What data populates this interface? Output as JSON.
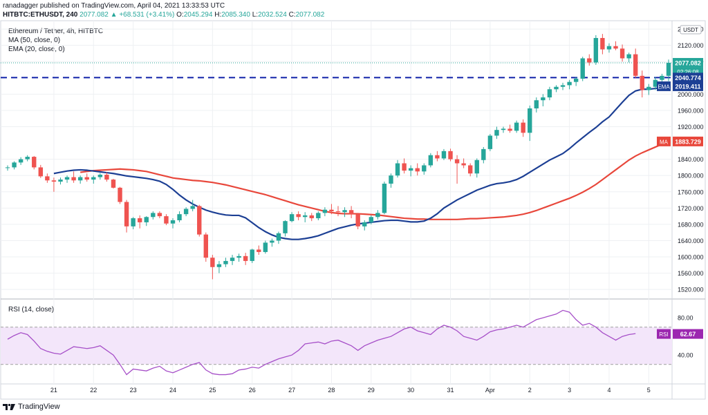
{
  "header": {
    "line1": "ranadagger published on TradingView.com, April 04, 2021 13:33:53 UTC",
    "symbol": "HITBTC:ETHUSDT, 240",
    "last": "2077.082",
    "change": "▲ +68.531 (+3.41%)",
    "o_label": "O:",
    "o_val": "2045.294",
    "h_label": "H:",
    "h_val": "2085.340",
    "l_label": "L:",
    "l_val": "2032.524",
    "c_label": "C:",
    "c_val": "2077.082"
  },
  "legend": {
    "title": "Ethereum / Tether, 4h, HITBTC",
    "ma": "MA (50, close, 0)",
    "ema": "EMA (20, close, 0)",
    "rsi": "RSI (14, close)"
  },
  "currency_label": "USDT",
  "price_tags": {
    "last": "2077.082",
    "countdown": "02:26:08",
    "support": "2040.774",
    "ema_label": "EMA",
    "ema": "2019.411",
    "ma_label": "MA",
    "ma": "1883.729",
    "rsi_label": "RSI",
    "rsi": "62.67"
  },
  "footer": {
    "brand": "TradingView"
  },
  "colors": {
    "up": "#26a69a",
    "down": "#ef5350",
    "ma": "#e8473b",
    "ema": "#1c3f94",
    "support": "#0d1fa8",
    "rsi_line": "#a64fc8",
    "rsi_band": "#f3e6fa",
    "grid": "#eef0f3",
    "axis_text": "#131722",
    "tag_dark": "#1c3f94",
    "tag_red": "#e8473b",
    "tag_gray": "#787b86",
    "tag_rsi": "#9c27b0"
  },
  "chart_data": {
    "type": "candlestick",
    "title": "Ethereum / Tether, 4h, HITBTC",
    "xlabel": "",
    "ylabel": "",
    "price_ticks": [
      2160,
      2120,
      2080,
      2000,
      1960,
      1920,
      1840,
      1800,
      1760,
      1720,
      1680,
      1640,
      1600,
      1560,
      1520
    ],
    "price_ylim": [
      1505,
      2172
    ],
    "x_ticks": [
      {
        "label": "21",
        "i": 7
      },
      {
        "label": "22",
        "i": 13
      },
      {
        "label": "23",
        "i": 19
      },
      {
        "label": "24",
        "i": 25
      },
      {
        "label": "25",
        "i": 31
      },
      {
        "label": "26",
        "i": 37
      },
      {
        "label": "27",
        "i": 43
      },
      {
        "label": "28",
        "i": 49
      },
      {
        "label": "29",
        "i": 55
      },
      {
        "label": "30",
        "i": 61
      },
      {
        "label": "31",
        "i": 67
      },
      {
        "label": "Apr",
        "i": 73
      },
      {
        "label": "2",
        "i": 79
      },
      {
        "label": "3",
        "i": 85
      },
      {
        "label": "4",
        "i": 91
      },
      {
        "label": "5",
        "i": 97
      }
    ],
    "support_level": 2040.774,
    "candles": [
      [
        1820,
        1825,
        1812,
        1820
      ],
      [
        1820,
        1835,
        1815,
        1832
      ],
      [
        1832,
        1845,
        1826,
        1840
      ],
      [
        1840,
        1850,
        1835,
        1846
      ],
      [
        1846,
        1848,
        1815,
        1820
      ],
      [
        1820,
        1826,
        1794,
        1798
      ],
      [
        1798,
        1805,
        1782,
        1788
      ],
      [
        1788,
        1795,
        1760,
        1785
      ],
      [
        1785,
        1795,
        1778,
        1790
      ],
      [
        1790,
        1800,
        1782,
        1796
      ],
      [
        1796,
        1810,
        1782,
        1788
      ],
      [
        1788,
        1800,
        1780,
        1796
      ],
      [
        1796,
        1805,
        1785,
        1790
      ],
      [
        1790,
        1800,
        1780,
        1796
      ],
      [
        1796,
        1806,
        1790,
        1802
      ],
      [
        1802,
        1808,
        1785,
        1790
      ],
      [
        1790,
        1792,
        1768,
        1770
      ],
      [
        1770,
        1772,
        1730,
        1735
      ],
      [
        1735,
        1740,
        1660,
        1675
      ],
      [
        1675,
        1698,
        1668,
        1695
      ],
      [
        1695,
        1702,
        1670,
        1685
      ],
      [
        1685,
        1700,
        1676,
        1698
      ],
      [
        1698,
        1712,
        1692,
        1708
      ],
      [
        1708,
        1712,
        1695,
        1700
      ],
      [
        1700,
        1705,
        1678,
        1682
      ],
      [
        1682,
        1695,
        1670,
        1690
      ],
      [
        1690,
        1712,
        1685,
        1705
      ],
      [
        1705,
        1722,
        1700,
        1718
      ],
      [
        1718,
        1740,
        1712,
        1725
      ],
      [
        1725,
        1728,
        1650,
        1655
      ],
      [
        1655,
        1660,
        1588,
        1598
      ],
      [
        1598,
        1605,
        1545,
        1575
      ],
      [
        1575,
        1590,
        1560,
        1582
      ],
      [
        1582,
        1598,
        1575,
        1590
      ],
      [
        1590,
        1605,
        1580,
        1598
      ],
      [
        1598,
        1608,
        1588,
        1602
      ],
      [
        1602,
        1610,
        1580,
        1590
      ],
      [
        1590,
        1620,
        1585,
        1618
      ],
      [
        1618,
        1628,
        1605,
        1612
      ],
      [
        1612,
        1640,
        1608,
        1635
      ],
      [
        1635,
        1645,
        1625,
        1640
      ],
      [
        1640,
        1662,
        1632,
        1658
      ],
      [
        1658,
        1690,
        1650,
        1688
      ],
      [
        1688,
        1710,
        1685,
        1705
      ],
      [
        1705,
        1712,
        1690,
        1698
      ],
      [
        1698,
        1710,
        1685,
        1702
      ],
      [
        1702,
        1708,
        1688,
        1695
      ],
      [
        1695,
        1712,
        1690,
        1708
      ],
      [
        1708,
        1722,
        1700,
        1716
      ],
      [
        1716,
        1730,
        1705,
        1712
      ],
      [
        1712,
        1725,
        1700,
        1710
      ],
      [
        1710,
        1722,
        1698,
        1715
      ],
      [
        1715,
        1725,
        1695,
        1705
      ],
      [
        1705,
        1708,
        1668,
        1675
      ],
      [
        1675,
        1690,
        1665,
        1685
      ],
      [
        1685,
        1702,
        1680,
        1698
      ],
      [
        1698,
        1715,
        1692,
        1708
      ],
      [
        1708,
        1785,
        1705,
        1780
      ],
      [
        1780,
        1805,
        1770,
        1800
      ],
      [
        1800,
        1838,
        1795,
        1830
      ],
      [
        1830,
        1842,
        1805,
        1812
      ],
      [
        1812,
        1825,
        1798,
        1818
      ],
      [
        1818,
        1830,
        1800,
        1810
      ],
      [
        1810,
        1830,
        1802,
        1825
      ],
      [
        1825,
        1855,
        1820,
        1850
      ],
      [
        1850,
        1860,
        1835,
        1842
      ],
      [
        1842,
        1865,
        1838,
        1860
      ],
      [
        1860,
        1866,
        1835,
        1840
      ],
      [
        1840,
        1850,
        1780,
        1830
      ],
      [
        1830,
        1842,
        1818,
        1825
      ],
      [
        1825,
        1830,
        1798,
        1805
      ],
      [
        1805,
        1842,
        1795,
        1838
      ],
      [
        1838,
        1870,
        1830,
        1865
      ],
      [
        1865,
        1902,
        1860,
        1898
      ],
      [
        1898,
        1920,
        1890,
        1912
      ],
      [
        1912,
        1920,
        1905,
        1915
      ],
      [
        1915,
        1925,
        1905,
        1910
      ],
      [
        1910,
        1935,
        1905,
        1930
      ],
      [
        1930,
        1938,
        1895,
        1905
      ],
      [
        1905,
        1972,
        1885,
        1965
      ],
      [
        1965,
        1992,
        1955,
        1985
      ],
      [
        1985,
        2000,
        1970,
        1992
      ],
      [
        1992,
        2018,
        1985,
        2012
      ],
      [
        2012,
        2022,
        2005,
        2018
      ],
      [
        2018,
        2028,
        2010,
        2022
      ],
      [
        2022,
        2035,
        2012,
        2030
      ],
      [
        2030,
        2042,
        2020,
        2038
      ],
      [
        2038,
        2092,
        2032,
        2088
      ],
      [
        2088,
        2098,
        2070,
        2078
      ],
      [
        2078,
        2145,
        2072,
        2138
      ],
      [
        2138,
        2148,
        2098,
        2110
      ],
      [
        2110,
        2125,
        2102,
        2118
      ],
      [
        2118,
        2130,
        2108,
        2112
      ],
      [
        2112,
        2122,
        2080,
        2088
      ],
      [
        2088,
        2102,
        2078,
        2098
      ],
      [
        2098,
        2112,
        2040,
        2045
      ],
      [
        2045,
        2058,
        1992,
        2010
      ],
      [
        2010,
        2025,
        1998,
        2018
      ],
      [
        2018,
        2042,
        2010,
        2035
      ],
      [
        2035,
        2050,
        2030,
        2045
      ],
      [
        2045,
        2085,
        2032,
        2077
      ]
    ],
    "ma50": [
      1808,
      1810,
      1812,
      1813,
      1814,
      1815,
      1816,
      1815,
      1814,
      1812,
      1810,
      1806,
      1802,
      1798,
      1794,
      1792,
      1790,
      1788,
      1787,
      1785,
      1783,
      1780,
      1777,
      1773,
      1769,
      1765,
      1761,
      1757,
      1753,
      1748,
      1743,
      1738,
      1733,
      1728,
      1724,
      1720,
      1716,
      1712,
      1709,
      1707,
      1706,
      1706,
      1706,
      1705,
      1704,
      1703,
      1701,
      1699,
      1697,
      1695,
      1694,
      1693,
      1693,
      1692,
      1692,
      1692,
      1692,
      1692,
      1693,
      1694,
      1694,
      1695,
      1696,
      1697,
      1698,
      1700,
      1702,
      1705,
      1709,
      1714,
      1720,
      1726,
      1732,
      1738,
      1744,
      1751,
      1759,
      1768,
      1778,
      1790,
      1802,
      1814,
      1826,
      1838,
      1848,
      1856,
      1863,
      1870,
      1877,
      1883
    ],
    "ema20": [
      1805,
      1808,
      1811,
      1813,
      1814,
      1813,
      1811,
      1809,
      1807,
      1805,
      1802,
      1799,
      1797,
      1795,
      1793,
      1790,
      1786,
      1778,
      1766,
      1752,
      1740,
      1730,
      1722,
      1715,
      1710,
      1706,
      1703,
      1702,
      1702,
      1696,
      1684,
      1672,
      1662,
      1654,
      1648,
      1645,
      1643,
      1643,
      1645,
      1648,
      1652,
      1658,
      1664,
      1670,
      1674,
      1678,
      1681,
      1683,
      1685,
      1687,
      1689,
      1690,
      1690,
      1688,
      1686,
      1686,
      1688,
      1695,
      1706,
      1720,
      1730,
      1740,
      1748,
      1756,
      1764,
      1770,
      1776,
      1780,
      1782,
      1785,
      1790,
      1798,
      1808,
      1818,
      1828,
      1838,
      1846,
      1854,
      1866,
      1880,
      1893,
      1906,
      1918,
      1932,
      1944,
      1962,
      1980,
      1997,
      2008,
      2012,
      2012,
      2014,
      2016,
      2019
    ],
    "rsi_ticks": [
      80,
      40
    ],
    "rsi_ylim": [
      12,
      92
    ],
    "rsi_band": [
      30,
      70
    ],
    "rsi": [
      57,
      61,
      64,
      62,
      55,
      47,
      44,
      42,
      41,
      45,
      49,
      48,
      47,
      48,
      50,
      45,
      40,
      30,
      19,
      25,
      24,
      23,
      26,
      28,
      23,
      21,
      24,
      27,
      30,
      32,
      24,
      20,
      19,
      19,
      20,
      24,
      25,
      27,
      26,
      30,
      33,
      36,
      38,
      40,
      45,
      52,
      53,
      54,
      52,
      55,
      56,
      53,
      50,
      45,
      50,
      53,
      56,
      58,
      60,
      64,
      68,
      70,
      66,
      64,
      62,
      68,
      72,
      70,
      66,
      60,
      58,
      56,
      60,
      65,
      67,
      68,
      70,
      72,
      70,
      74,
      78,
      80,
      82,
      84,
      88,
      86,
      78,
      72,
      74,
      70,
      64,
      60,
      56,
      60,
      62,
      63
    ]
  }
}
